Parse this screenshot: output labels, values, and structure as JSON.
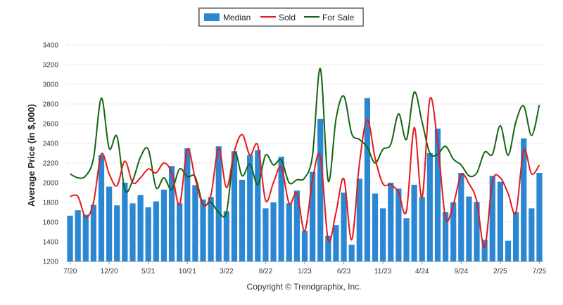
{
  "chart_data": {
    "type": "bar",
    "ylabel": "Average Price (in $,000)",
    "ylim": [
      1200,
      3400
    ],
    "yticks": [
      1200,
      1400,
      1600,
      1800,
      2000,
      2200,
      2400,
      2600,
      2800,
      3000,
      3200,
      3400
    ],
    "grid": true,
    "legend_position": "top-center",
    "x_tick_labels": [
      {
        "index": 0,
        "label": "7/20"
      },
      {
        "index": 5,
        "label": "12/20"
      },
      {
        "index": 10,
        "label": "5/21"
      },
      {
        "index": 15,
        "label": "10/21"
      },
      {
        "index": 20,
        "label": "3/22"
      },
      {
        "index": 25,
        "label": "8/22"
      },
      {
        "index": 30,
        "label": "1/23"
      },
      {
        "index": 35,
        "label": "6/23"
      },
      {
        "index": 40,
        "label": "11/23"
      },
      {
        "index": 45,
        "label": "4/24"
      },
      {
        "index": 50,
        "label": "9/24"
      },
      {
        "index": 55,
        "label": "2/25"
      },
      {
        "index": 60,
        "label": "7/25"
      }
    ],
    "series": [
      {
        "name": "Median",
        "kind": "bar",
        "color": "#2b87d1",
        "values": [
          1665,
          1720,
          1675,
          1775,
          2280,
          1960,
          1770,
          2000,
          1790,
          1875,
          1750,
          1810,
          1930,
          2170,
          1790,
          2350,
          1975,
          1830,
          1855,
          2370,
          1710,
          2320,
          2030,
          2280,
          2330,
          1740,
          1800,
          2265,
          1790,
          1920,
          1510,
          2110,
          2650,
          1460,
          1570,
          1900,
          1370,
          2040,
          2860,
          1890,
          1740,
          2000,
          1940,
          1640,
          1980,
          1855,
          2300,
          2550,
          1700,
          1800,
          2100,
          1860,
          1805,
          1420,
          2070,
          2010,
          1410,
          1700,
          2450,
          1740,
          2100
        ]
      },
      {
        "name": "Sold",
        "kind": "line",
        "color": "#e41a1c",
        "values": [
          1860,
          1860,
          1650,
          1800,
          2290,
          2090,
          1970,
          2220,
          2000,
          2050,
          2140,
          2100,
          2200,
          2100,
          1780,
          2340,
          2040,
          1780,
          1870,
          2350,
          1950,
          2320,
          2490,
          2280,
          2380,
          1820,
          2000,
          2160,
          1790,
          1890,
          1510,
          2030,
          2270,
          1420,
          1700,
          2040,
          1420,
          2200,
          2640,
          2250,
          1990,
          1980,
          1900,
          1710,
          2560,
          1850,
          2850,
          2400,
          1640,
          1780,
          2080,
          1990,
          1810,
          1340,
          2010,
          2050,
          1890,
          1700,
          2330,
          2090,
          2180
        ]
      },
      {
        "name": "For Sale",
        "kind": "line",
        "color": "#116611",
        "values": [
          2090,
          2050,
          2070,
          2250,
          2860,
          2350,
          2470,
          1930,
          2020,
          2260,
          2340,
          1950,
          2050,
          1930,
          2140,
          2060,
          2060,
          1780,
          1800,
          1700,
          1700,
          2300,
          2070,
          2190,
          1980,
          2280,
          2180,
          2230,
          2000,
          2030,
          2050,
          2280,
          3160,
          2020,
          2650,
          2880,
          2500,
          2440,
          2360,
          2200,
          2340,
          2390,
          2700,
          2440,
          2920,
          2620,
          2300,
          2290,
          2370,
          2240,
          2180,
          2070,
          2100,
          2310,
          2290,
          2580,
          2280,
          2620,
          2780,
          2480,
          2790
        ]
      }
    ]
  },
  "copyright": "Copyright © Trendgraphix, Inc."
}
